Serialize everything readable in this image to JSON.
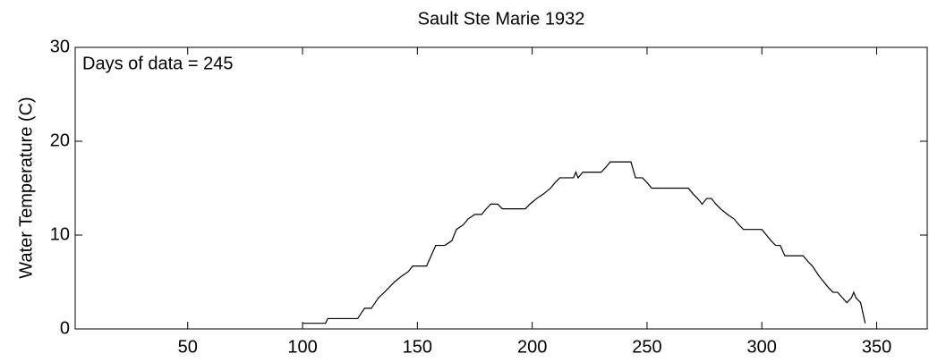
{
  "chart_data": {
    "type": "line",
    "title": "Sault Ste Marie  1932",
    "y_label": "Water Temperature (C)",
    "annotation": "Days of data = 245",
    "xlim": [
      1,
      372
    ],
    "ylim": [
      0,
      30
    ],
    "xticks": [
      50,
      100,
      150,
      200,
      250,
      300,
      350
    ],
    "yticks": [
      0,
      10,
      20,
      30
    ],
    "series": [
      {
        "color": "#000000",
        "x": [
          100,
          110,
          111,
          124,
          127,
          130,
          133,
          136,
          140,
          143,
          146,
          148,
          154,
          156,
          158,
          162,
          165,
          167,
          170,
          172,
          175,
          178,
          180,
          182,
          185,
          187,
          197,
          199,
          202,
          205,
          208,
          210,
          212,
          218,
          219,
          220,
          222,
          230,
          232,
          234,
          243,
          245,
          248,
          250,
          252,
          268,
          270,
          272,
          274,
          276,
          278,
          280,
          282,
          285,
          288,
          290,
          292,
          300,
          302,
          304,
          306,
          308,
          310,
          318,
          320,
          322,
          325,
          327,
          329,
          331,
          333,
          337,
          339,
          340,
          341,
          343,
          345
        ],
        "values": [
          0.6,
          0.6,
          1.1,
          1.1,
          2.2,
          2.2,
          3.3,
          4,
          5,
          5.6,
          6.1,
          6.7,
          6.7,
          7.8,
          8.9,
          8.9,
          9.4,
          10.6,
          11.1,
          11.7,
          12.2,
          12.2,
          12.8,
          13.3,
          13.3,
          12.8,
          12.8,
          13.3,
          13.9,
          14.4,
          15,
          15.6,
          16.1,
          16.1,
          16.7,
          16.1,
          16.7,
          16.7,
          17.2,
          17.8,
          17.8,
          16.1,
          16.1,
          15.6,
          15,
          15,
          14.4,
          13.9,
          13.3,
          13.9,
          13.9,
          13.3,
          12.8,
          12.2,
          11.7,
          11.1,
          10.6,
          10.6,
          10,
          9.4,
          8.9,
          8.9,
          7.8,
          7.8,
          7.2,
          6.7,
          5.6,
          5,
          4.4,
          3.9,
          3.9,
          2.8,
          3.3,
          3.9,
          3.3,
          2.8,
          0.6
        ]
      }
    ]
  }
}
